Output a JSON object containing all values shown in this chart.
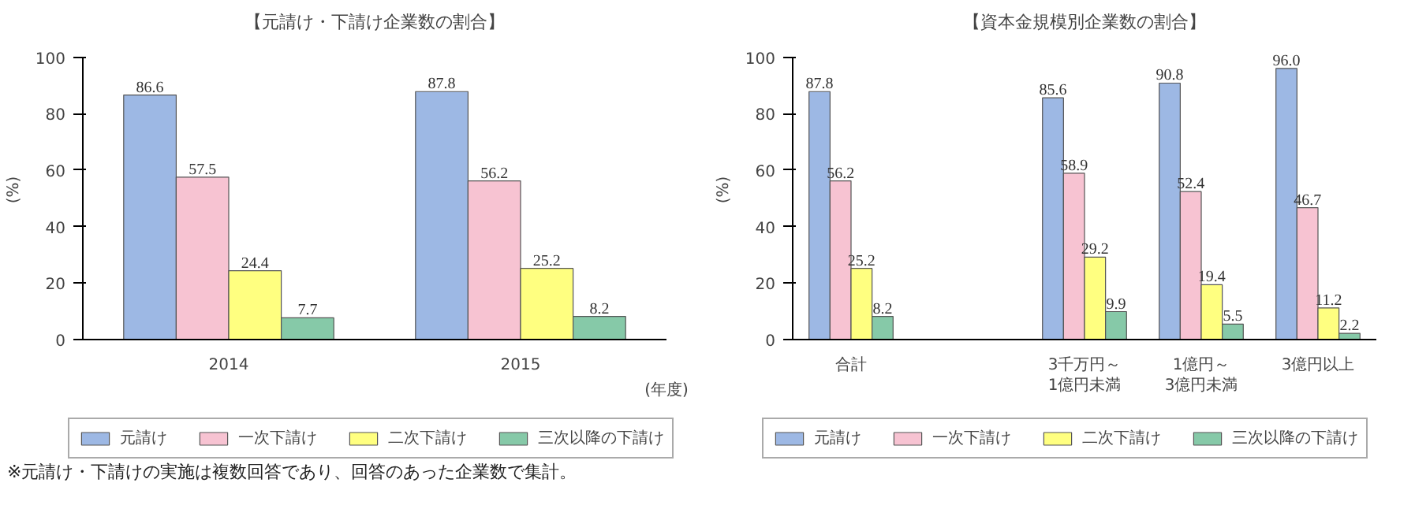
{
  "chart_data": [
    {
      "type": "bar",
      "title": "【元請け・下請け企業数の割合】",
      "ylabel": "(%)",
      "xlabel": "(年度)",
      "categories": [
        "2014",
        "2015"
      ],
      "series": [
        {
          "name": "元請け",
          "color": "#9db8e4",
          "values": [
            86.6,
            87.8
          ]
        },
        {
          "name": "一次下請け",
          "color": "#f7c3d2",
          "values": [
            57.5,
            56.2
          ]
        },
        {
          "name": "二次下請け",
          "color": "#ffff80",
          "values": [
            24.4,
            25.2
          ]
        },
        {
          "name": "三次以降の下請け",
          "color": "#86c9a8",
          "values": [
            7.7,
            8.2
          ]
        }
      ],
      "ylim": [
        0,
        100
      ],
      "yticks": [
        0,
        20,
        40,
        60,
        80,
        100
      ],
      "data_labels": true,
      "legend": "bottom",
      "grid": false,
      "annotations": [
        "※元請け・下請けの実施は複数回答であり、回答のあった企業数で集計。"
      ]
    },
    {
      "type": "bar",
      "title": "【資本金規模別企業数の割合】",
      "ylabel": "(%)",
      "categories": [
        "合計",
        null,
        "3千万円～\n1億円未満",
        "1億円～\n3億円未満",
        "3億円以上"
      ],
      "series": [
        {
          "name": "元請け",
          "color": "#9db8e4",
          "values": [
            87.8,
            null,
            85.6,
            90.8,
            96.0
          ],
          "value_labels": [
            "87.8",
            null,
            "85.6",
            "90.8",
            "96.0"
          ]
        },
        {
          "name": "一次下請け",
          "color": "#f7c3d2",
          "values": [
            56.2,
            null,
            58.9,
            52.4,
            46.7
          ]
        },
        {
          "name": "二次下請け",
          "color": "#ffff80",
          "values": [
            25.2,
            null,
            29.2,
            19.4,
            11.2
          ]
        },
        {
          "name": "三次以降の下請け",
          "color": "#86c9a8",
          "values": [
            8.2,
            null,
            9.9,
            5.5,
            2.2
          ]
        }
      ],
      "ylim": [
        0,
        100
      ],
      "yticks": [
        0,
        20,
        40,
        60,
        80,
        100
      ],
      "data_labels": true,
      "legend": "bottom",
      "grid": false
    }
  ]
}
